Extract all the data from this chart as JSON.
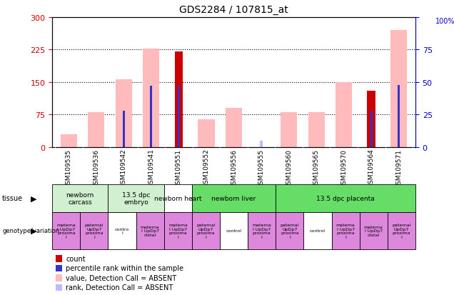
{
  "title": "GDS2284 / 107815_at",
  "samples": [
    "GSM109535",
    "GSM109536",
    "GSM109542",
    "GSM109541",
    "GSM109551",
    "GSM109552",
    "GSM109556",
    "GSM109555",
    "GSM109560",
    "GSM109565",
    "GSM109570",
    "GSM109564",
    "GSM109571"
  ],
  "count_values": [
    0,
    0,
    0,
    0,
    220,
    0,
    0,
    0,
    0,
    0,
    0,
    130,
    0
  ],
  "percentile_values": [
    0,
    0,
    28,
    47,
    47,
    0,
    0,
    0,
    0,
    0,
    0,
    28,
    48
  ],
  "absent_value": [
    30,
    80,
    157,
    228,
    0,
    65,
    90,
    0,
    80,
    80,
    150,
    0,
    270
  ],
  "absent_rank": [
    0,
    0,
    0,
    0,
    0,
    0,
    0,
    5,
    0,
    0,
    0,
    0,
    0
  ],
  "ylim_left": [
    0,
    300
  ],
  "ylim_right": [
    0,
    100
  ],
  "yticks_left": [
    0,
    75,
    150,
    225,
    300
  ],
  "yticks_right": [
    0,
    25,
    50,
    75,
    100
  ],
  "tissue_groups": [
    {
      "label": "newborn\ncarcass",
      "start": 0,
      "end": 2,
      "color": "#d0f0d0"
    },
    {
      "label": "13.5 dpc\nembryo",
      "start": 2,
      "end": 4,
      "color": "#d0f0d0"
    },
    {
      "label": "newborn heart",
      "start": 4,
      "end": 5,
      "color": "#ffffff"
    },
    {
      "label": "newborn liver",
      "start": 5,
      "end": 8,
      "color": "#66dd66"
    },
    {
      "label": "13.5 dpc placenta",
      "start": 8,
      "end": 13,
      "color": "#66dd66"
    }
  ],
  "genotype_groups": [
    {
      "label": "materna\nl UpDp7\nproxima\nl",
      "start": 0,
      "end": 1,
      "color": "#dd88dd"
    },
    {
      "label": "paternal\nUpDp7\nproxima\nl",
      "start": 1,
      "end": 2,
      "color": "#dd88dd"
    },
    {
      "label": "contro\nl",
      "start": 2,
      "end": 3,
      "color": "#ffffff"
    },
    {
      "label": "materna\nl UpDp7\ndistal",
      "start": 3,
      "end": 4,
      "color": "#dd88dd"
    },
    {
      "label": "materna\nl UpDp7\nproxima\nl",
      "start": 4,
      "end": 5,
      "color": "#dd88dd"
    },
    {
      "label": "paternal\nUpDp7\nproxima\nl",
      "start": 5,
      "end": 6,
      "color": "#dd88dd"
    },
    {
      "label": "control",
      "start": 6,
      "end": 7,
      "color": "#ffffff"
    },
    {
      "label": "materna\nl UpDp7\nproxima\nl",
      "start": 7,
      "end": 8,
      "color": "#dd88dd"
    },
    {
      "label": "paternal\nUpDp7\nproxima\nl",
      "start": 8,
      "end": 9,
      "color": "#dd88dd"
    },
    {
      "label": "control",
      "start": 9,
      "end": 10,
      "color": "#ffffff"
    },
    {
      "label": "materna\nl UpDp7\nproxima\nl",
      "start": 10,
      "end": 11,
      "color": "#dd88dd"
    },
    {
      "label": "materna\nl UpDp7\ndistal",
      "start": 11,
      "end": 12,
      "color": "#dd88dd"
    },
    {
      "label": "paternal\nUpDp7\nproxima\nl",
      "start": 12,
      "end": 13,
      "color": "#dd88dd"
    }
  ],
  "count_color": "#cc0000",
  "percentile_color": "#3333cc",
  "absent_value_color": "#ffbbbb",
  "absent_rank_color": "#bbbbff",
  "left_axis_color": "#cc0000",
  "right_axis_color": "#0000cc",
  "sample_bg_color": "#c8c8c8",
  "plot_bg": "#ffffff"
}
